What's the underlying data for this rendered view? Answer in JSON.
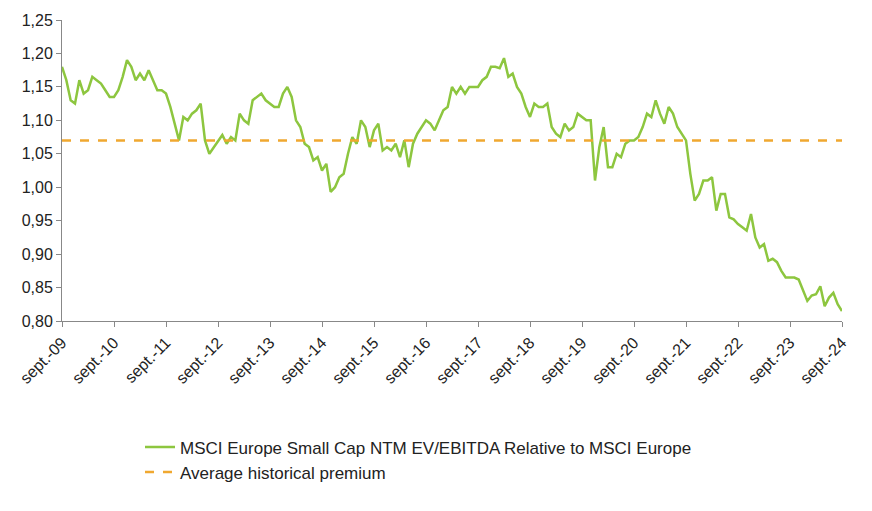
{
  "chart_data": {
    "type": "line",
    "categories": [
      "sept.-09",
      null,
      null,
      null,
      null,
      null,
      null,
      null,
      null,
      null,
      null,
      null,
      "sept.-10",
      null,
      null,
      null,
      null,
      null,
      null,
      null,
      null,
      null,
      null,
      null,
      "sept.-11",
      null,
      null,
      null,
      null,
      null,
      null,
      null,
      null,
      null,
      null,
      null,
      "sept.-12",
      null,
      null,
      null,
      null,
      null,
      null,
      null,
      null,
      null,
      null,
      null,
      "sept.-13",
      null,
      null,
      null,
      null,
      null,
      null,
      null,
      null,
      null,
      null,
      null,
      "sept.-14",
      null,
      null,
      null,
      null,
      null,
      null,
      null,
      null,
      null,
      null,
      null,
      "sept.-15",
      null,
      null,
      null,
      null,
      null,
      null,
      null,
      null,
      null,
      null,
      null,
      "sept.-16",
      null,
      null,
      null,
      null,
      null,
      null,
      null,
      null,
      null,
      null,
      null,
      "sept.-17",
      null,
      null,
      null,
      null,
      null,
      null,
      null,
      null,
      null,
      null,
      null,
      "sept.-18",
      null,
      null,
      null,
      null,
      null,
      null,
      null,
      null,
      null,
      null,
      null,
      "sept.-19",
      null,
      null,
      null,
      null,
      null,
      null,
      null,
      null,
      null,
      null,
      null,
      "sept.-20",
      null,
      null,
      null,
      null,
      null,
      null,
      null,
      null,
      null,
      null,
      null,
      "sept.-21",
      null,
      null,
      null,
      null,
      null,
      null,
      null,
      null,
      null,
      null,
      null,
      "sept.-22",
      null,
      null,
      null,
      null,
      null,
      null,
      null,
      null,
      null,
      null,
      null,
      "sept.-23",
      null,
      null,
      null,
      null,
      null,
      null,
      null,
      null,
      null,
      null,
      null,
      "sept.-24"
    ],
    "series": [
      {
        "name": "MSCI Europe Small Cap NTM EV/EBITDA Relative to MSCI Europe",
        "color": "#8dc63f",
        "line_style": "solid",
        "values": [
          1.18,
          1.16,
          1.13,
          1.125,
          1.16,
          1.14,
          1.145,
          1.165,
          1.16,
          1.155,
          1.145,
          1.135,
          1.135,
          1.145,
          1.165,
          1.19,
          1.18,
          1.16,
          1.17,
          1.16,
          1.175,
          1.16,
          1.145,
          1.145,
          1.14,
          1.12,
          1.095,
          1.07,
          1.105,
          1.1,
          1.11,
          1.115,
          1.125,
          1.07,
          1.05,
          1.06,
          1.07,
          1.078,
          1.065,
          1.075,
          1.07,
          1.11,
          1.1,
          1.095,
          1.13,
          1.135,
          1.14,
          1.13,
          1.125,
          1.12,
          1.12,
          1.14,
          1.15,
          1.135,
          1.1,
          1.09,
          1.065,
          1.06,
          1.04,
          1.045,
          1.025,
          1.035,
          0.993,
          1.0,
          1.015,
          1.02,
          1.05,
          1.075,
          1.065,
          1.1,
          1.09,
          1.06,
          1.085,
          1.095,
          1.055,
          1.06,
          1.055,
          1.065,
          1.045,
          1.07,
          1.03,
          1.065,
          1.08,
          1.09,
          1.1,
          1.095,
          1.085,
          1.1,
          1.115,
          1.12,
          1.15,
          1.14,
          1.15,
          1.14,
          1.15,
          1.15,
          1.15,
          1.16,
          1.165,
          1.18,
          1.18,
          1.178,
          1.193,
          1.165,
          1.17,
          1.15,
          1.14,
          1.12,
          1.105,
          1.125,
          1.12,
          1.12,
          1.125,
          1.09,
          1.08,
          1.075,
          1.095,
          1.085,
          1.09,
          1.11,
          1.105,
          1.1,
          1.1,
          1.01,
          1.06,
          1.09,
          1.03,
          1.03,
          1.05,
          1.045,
          1.065,
          1.07,
          1.07,
          1.075,
          1.09,
          1.11,
          1.105,
          1.13,
          1.11,
          1.095,
          1.12,
          1.11,
          1.09,
          1.08,
          1.07,
          1.02,
          0.98,
          0.99,
          1.01,
          1.01,
          1.015,
          0.965,
          0.99,
          0.99,
          0.955,
          0.952,
          0.945,
          0.94,
          0.935,
          0.96,
          0.925,
          0.91,
          0.915,
          0.89,
          0.893,
          0.888,
          0.875,
          0.865,
          0.865,
          0.865,
          0.862,
          0.845,
          0.83,
          0.838,
          0.84,
          0.852,
          0.822,
          0.835,
          0.842,
          0.825,
          0.815
        ]
      }
    ],
    "reference_line": {
      "name": "Average historical premium",
      "value": 1.07,
      "color": "#f0a830",
      "line_style": "dash"
    },
    "ylim": [
      0.8,
      1.25
    ],
    "yticks": [
      {
        "value": 0.8,
        "label": "0,80"
      },
      {
        "value": 0.85,
        "label": "0,85"
      },
      {
        "value": 0.9,
        "label": "0,90"
      },
      {
        "value": 0.95,
        "label": "0,95"
      },
      {
        "value": 1.0,
        "label": "1,00"
      },
      {
        "value": 1.05,
        "label": "1,05"
      },
      {
        "value": 1.1,
        "label": "1,10"
      },
      {
        "value": 1.15,
        "label": "1,15"
      },
      {
        "value": 1.2,
        "label": "1,20"
      },
      {
        "value": 1.25,
        "label": "1,25"
      }
    ],
    "grid": false,
    "legend": "bottom"
  }
}
